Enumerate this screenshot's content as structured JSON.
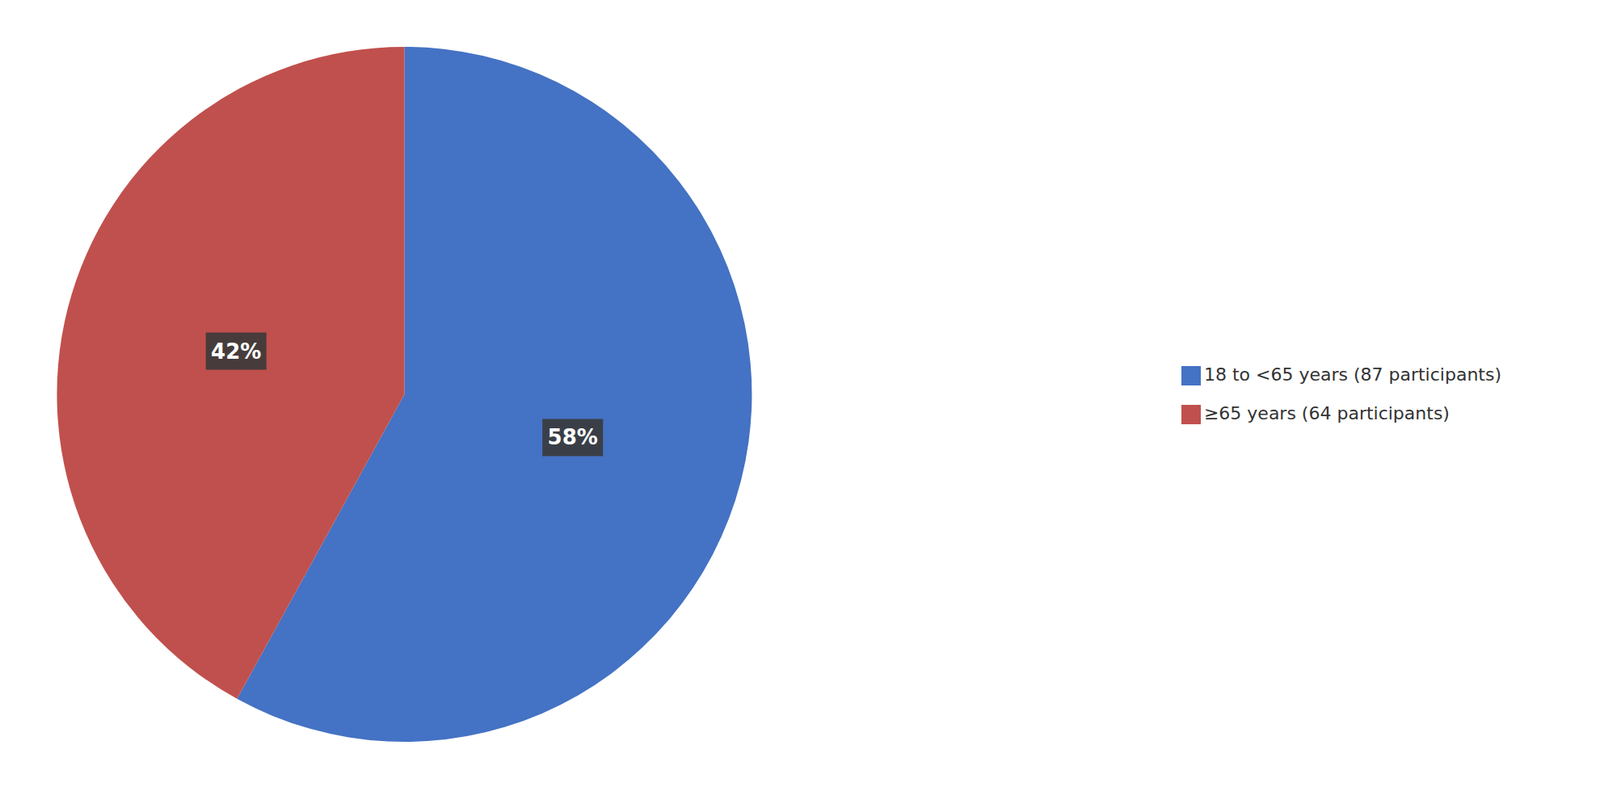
{
  "chart_data": {
    "type": "pie",
    "categories": [
      "18 to <65 years (87 participants)",
      "≥65 years (64 participants)"
    ],
    "values": [
      58,
      42
    ],
    "value_labels": [
      "58%",
      "42%"
    ],
    "colors": [
      "#4472C4",
      "#C0504D"
    ],
    "data_labels": true,
    "legend": "right"
  }
}
